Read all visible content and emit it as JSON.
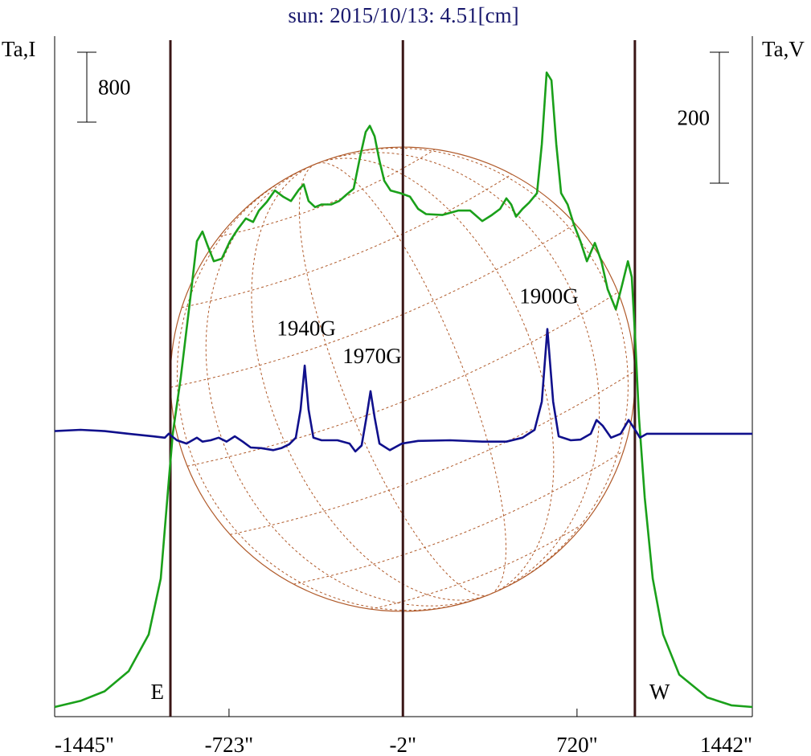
{
  "chart_data": {
    "type": "line",
    "title": "sun: 2015/10/13: 4.51[cm]",
    "y_label": "Ta,I",
    "y2_label": "Ta,V",
    "xlim": [
      -1446,
      1447
    ],
    "xticks": [
      {
        "value": -1445,
        "label": "-1445\""
      },
      {
        "value": -723,
        "label": "-723\""
      },
      {
        "value": -2,
        "label": "-2\""
      },
      {
        "value": 720,
        "label": "720\""
      },
      {
        "value": 1442,
        "label": "1442\""
      }
    ],
    "ylim": [
      0,
      7740
    ],
    "y2lim": [
      -432,
      601
    ],
    "series": [
      {
        "color": "#1aa01a",
        "x": [
          -1446,
          -1339,
          -1239,
          -1139,
          -1056,
          -1006,
          -973,
          -956,
          -923,
          -879,
          -856,
          -833,
          -813,
          -786,
          -753,
          -719,
          -686,
          -653,
          -623,
          -599,
          -566,
          -533,
          -499,
          -466,
          -433,
          -413,
          -393,
          -366,
          -339,
          -299,
          -266,
          -233,
          -206,
          -179,
          -156,
          -139,
          -119,
          -99,
          -79,
          -53,
          -13,
          27,
          61,
          94,
          161,
          227,
          277,
          327,
          367,
          401,
          427,
          447,
          467,
          494,
          521,
          554,
          574,
          594,
          614,
          634,
          654,
          681,
          707,
          734,
          761,
          794,
          821,
          847,
          881,
          907,
          931,
          947,
          961,
          977,
          1001,
          1034,
          1077,
          1144,
          1260,
          1360,
          1447
        ],
        "values": [
          110,
          180,
          290,
          520,
          940,
          1580,
          2690,
          3240,
          3880,
          4890,
          5440,
          5550,
          5400,
          5210,
          5240,
          5440,
          5580,
          5700,
          5660,
          5790,
          5890,
          6020,
          5950,
          5900,
          6030,
          6090,
          5900,
          5830,
          5860,
          5860,
          5900,
          5980,
          6040,
          6410,
          6690,
          6760,
          6640,
          6360,
          6130,
          6020,
          5990,
          5950,
          5810,
          5750,
          5740,
          5790,
          5790,
          5670,
          5740,
          5810,
          5930,
          5860,
          5720,
          5810,
          5880,
          5990,
          6550,
          7370,
          7280,
          6550,
          5990,
          5860,
          5630,
          5440,
          5210,
          5420,
          5210,
          4890,
          4660,
          4940,
          5210,
          5030,
          4340,
          3420,
          2500,
          1580,
          940,
          480,
          220,
          130,
          110
        ]
      },
      {
        "color": "#10108c",
        "axis": "y2",
        "x": [
          -1446,
          -1339,
          -1239,
          -1139,
          -1039,
          -989,
          -973,
          -939,
          -899,
          -856,
          -833,
          -799,
          -766,
          -733,
          -699,
          -666,
          -633,
          -589,
          -539,
          -506,
          -473,
          -446,
          -426,
          -409,
          -393,
          -373,
          -339,
          -273,
          -223,
          -199,
          -173,
          -153,
          -136,
          -119,
          -99,
          -56,
          -6,
          61,
          194,
          327,
          427,
          494,
          544,
          574,
          597,
          621,
          644,
          694,
          734,
          777,
          801,
          827,
          861,
          901,
          934,
          961,
          981,
          1010,
          1094,
          1227,
          1447
        ],
        "values": [
          4,
          6,
          4,
          0,
          -4,
          -6,
          0,
          -10,
          -15,
          -6,
          -12,
          -10,
          -6,
          -12,
          -4,
          -12,
          -21,
          -22,
          -25,
          -22,
          -16,
          -6,
          37,
          104,
          37,
          -6,
          -10,
          -10,
          -15,
          -27,
          -18,
          25,
          65,
          25,
          -15,
          -25,
          -15,
          -11,
          -10,
          -12,
          -12,
          -6,
          6,
          49,
          160,
          49,
          -4,
          -10,
          -9,
          0,
          21,
          12,
          -6,
          0,
          21,
          6,
          -6,
          0,
          0,
          0,
          0
        ]
      }
    ],
    "limb_lines": [
      -966,
      -2,
      960
    ],
    "limb_labels": [
      {
        "text": "E",
        "x": -966
      },
      {
        "text": "W",
        "x": 960
      }
    ],
    "scale_bars": [
      {
        "axis": "y",
        "value": 800
      },
      {
        "axis": "y2",
        "value": 200
      }
    ],
    "annotations": [
      {
        "text": "1940G",
        "x": -409,
        "y": 150
      },
      {
        "text": "1970G",
        "x": -136,
        "y": 108
      },
      {
        "text": "1900G",
        "x": 597,
        "y": 199
      }
    ]
  }
}
